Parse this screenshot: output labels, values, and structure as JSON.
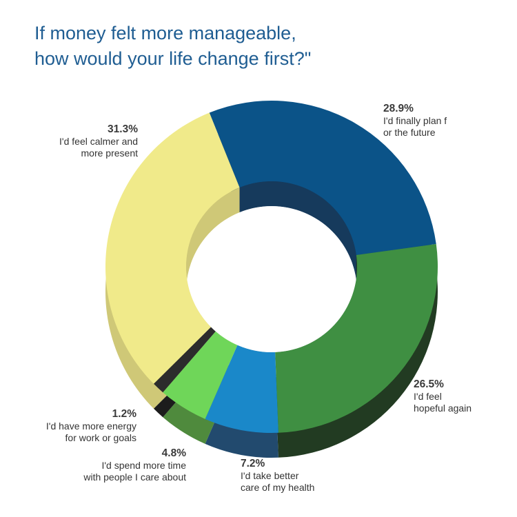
{
  "chart_data": {
    "type": "pie",
    "style": "donut-3d",
    "title_lines": [
      "If money felt more manageable,",
      "how would your life change first?\""
    ],
    "slices": [
      {
        "label": "I'd finally plan f\nor the future",
        "value": 28.9,
        "pct_label": "28.9%",
        "color": "#0b5388",
        "side_color": "#163a5c"
      },
      {
        "label": "I'd feel\nhopeful again",
        "value": 26.5,
        "pct_label": "26.5%",
        "color": "#3f8f42",
        "side_color": "#223b22"
      },
      {
        "label": "I'd take better\ncare of my health",
        "value": 7.2,
        "pct_label": "7.2%",
        "color": "#1a88c9",
        "side_color": "#224a6e"
      },
      {
        "label": "I'd spend more time\nwith people I care about",
        "value": 4.8,
        "pct_label": "4.8%",
        "color": "#6fd659",
        "side_color": "#4f8a3d"
      },
      {
        "label": "I'd have more energy\nfor work or goals",
        "value": 1.2,
        "pct_label": "1.2%",
        "color": "#2c2c2c",
        "side_color": "#1c1c1c"
      },
      {
        "label": "I'd feel calmer and\nmore present",
        "value": 31.3,
        "pct_label": "31.3%",
        "color": "#f0ea8a",
        "side_color": "#cfc877"
      }
    ]
  }
}
